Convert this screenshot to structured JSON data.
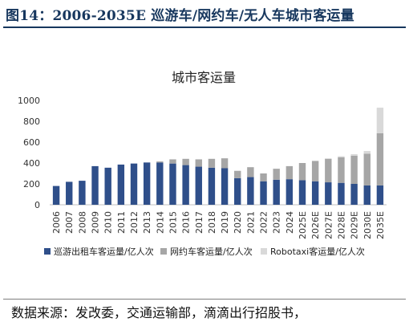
{
  "figure": {
    "title": "图14：2006-2035E 巡游车/网约车/无人车城市客运量",
    "source": "数据来源：发改委，交通运输部，滴滴出行招股书，"
  },
  "chart_data": {
    "type": "bar",
    "stacked": true,
    "title": "城市客运量",
    "categories": [
      "2006",
      "2007",
      "2008",
      "2009",
      "2010",
      "2011",
      "2012",
      "2013",
      "2014",
      "2015",
      "2016",
      "2017",
      "2018",
      "2019",
      "2020",
      "2021",
      "2022",
      "2023",
      "2024",
      "2025E",
      "2026E",
      "2027E",
      "2028E",
      "2029E",
      "2030E",
      "2035E"
    ],
    "series": [
      {
        "name": "巡游出租车客运量/亿人次",
        "color": "#2f4f8a",
        "values": [
          180,
          220,
          230,
          370,
          355,
          385,
          395,
          405,
          405,
          395,
          380,
          365,
          355,
          350,
          255,
          265,
          225,
          240,
          245,
          235,
          225,
          215,
          210,
          200,
          185,
          185
        ]
      },
      {
        "name": "网约车客运量/亿人次",
        "color": "#a6a6a6",
        "values": [
          0,
          0,
          0,
          0,
          0,
          0,
          0,
          0,
          10,
          40,
          60,
          70,
          85,
          95,
          70,
          95,
          75,
          105,
          125,
          165,
          195,
          225,
          245,
          270,
          305,
          500
        ]
      },
      {
        "name": "Robotaxi客运量/亿人次",
        "color": "#d9d9d9",
        "values": [
          0,
          0,
          0,
          0,
          0,
          0,
          0,
          0,
          0,
          0,
          0,
          0,
          0,
          0,
          0,
          0,
          0,
          0,
          0,
          0,
          0,
          5,
          10,
          15,
          25,
          245
        ]
      }
    ],
    "yticks": [
      "0",
      "200",
      "400",
      "600",
      "800",
      "1000"
    ],
    "ylim": [
      0,
      1000
    ],
    "legend_position": "bottom",
    "grid": false
  }
}
